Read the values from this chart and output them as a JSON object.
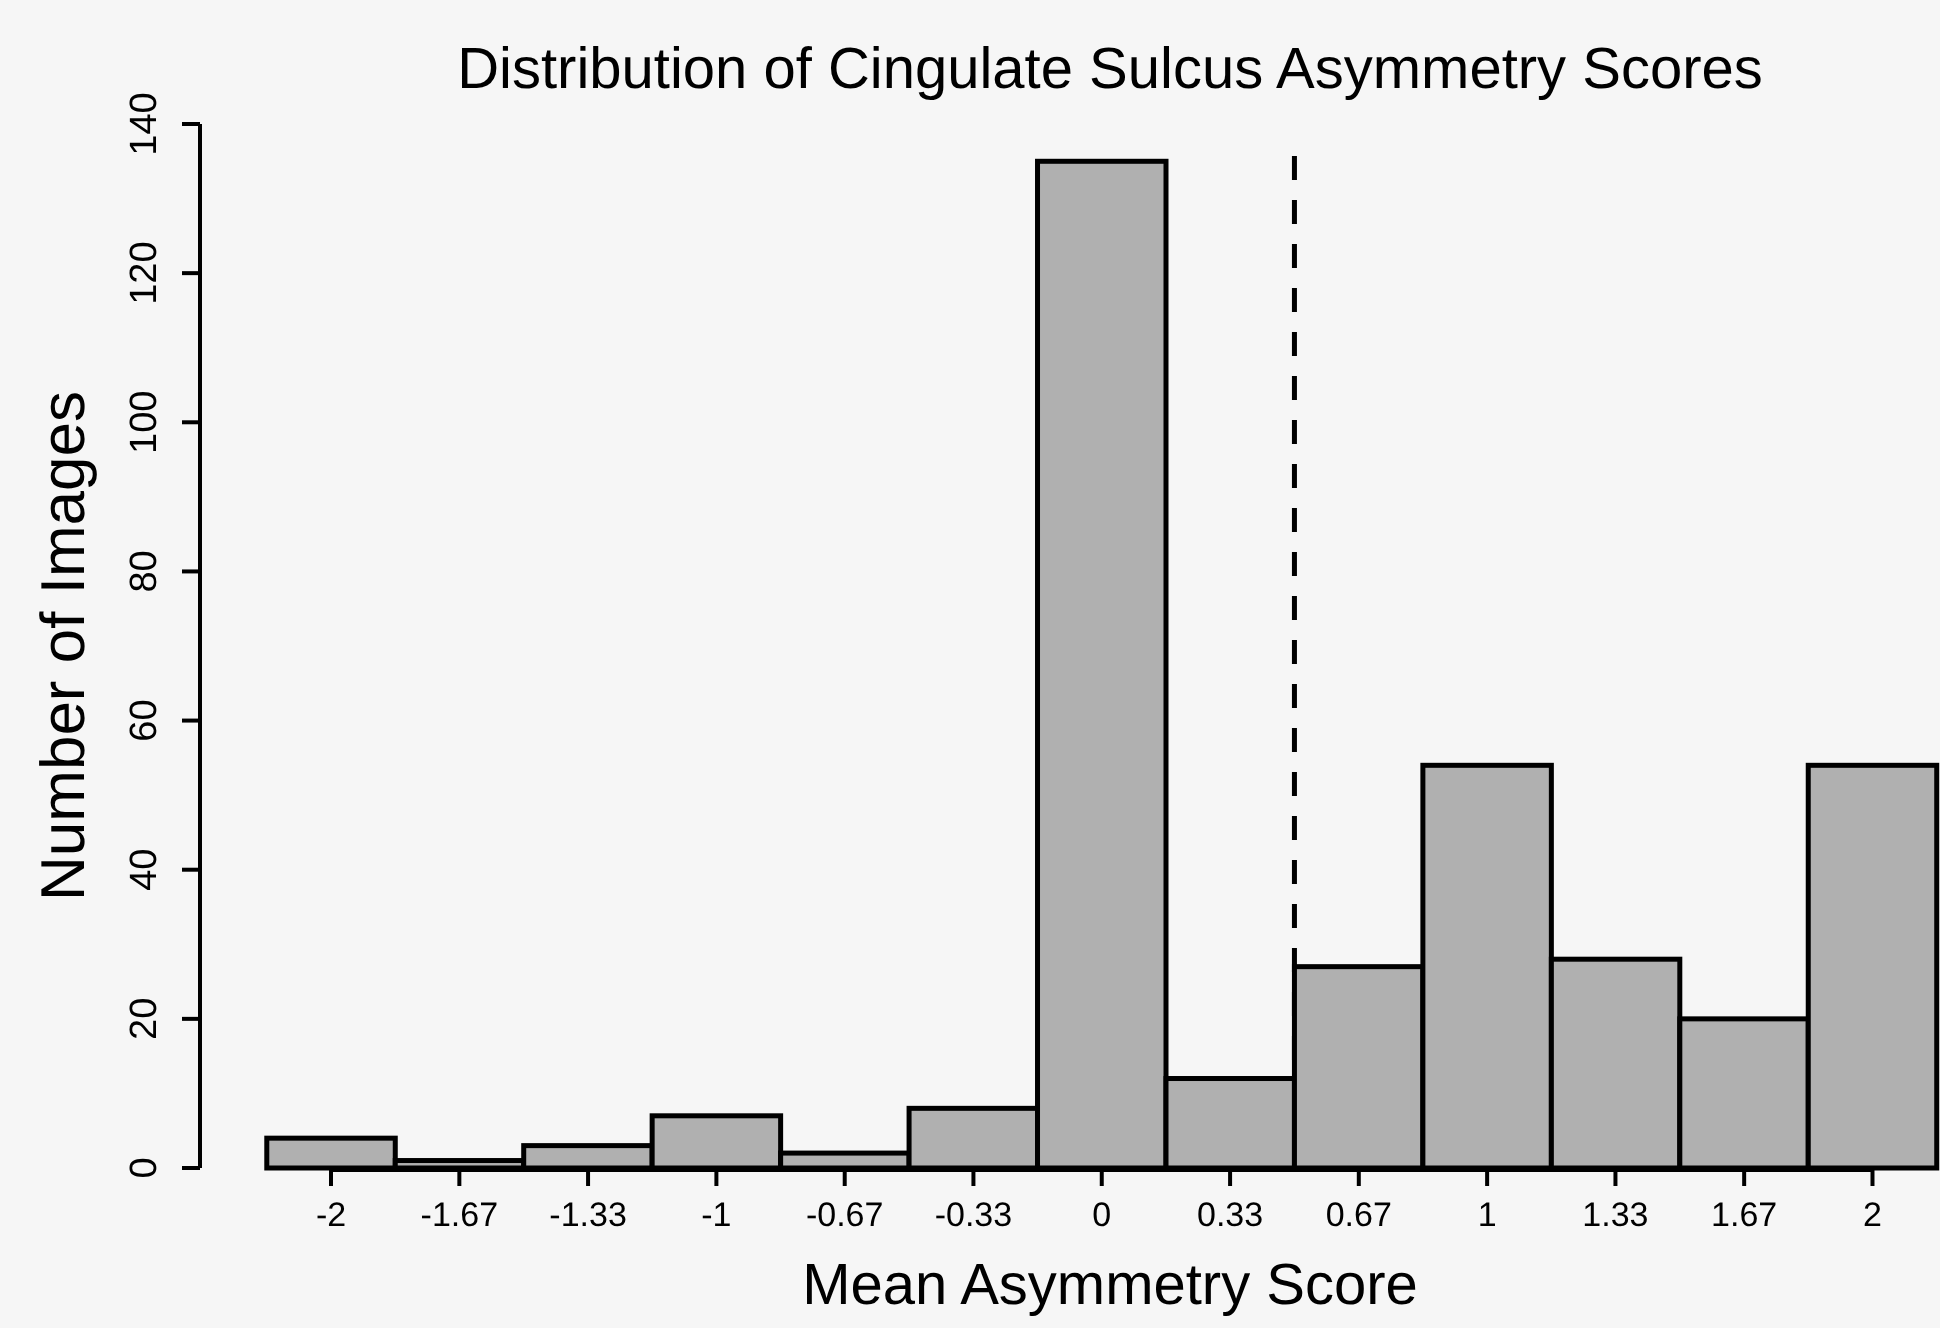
{
  "chart_data": {
    "type": "histogram",
    "title": "Distribution of Cingulate Sulcus Asymmetry Scores",
    "xlabel": "Mean Asymmetry Score",
    "ylabel": "Number of Images",
    "bins": [
      -2.1667,
      -1.8333,
      -1.5,
      -1.1667,
      -0.8333,
      -0.5,
      -0.1667,
      0.1667,
      0.5,
      0.8333,
      1.1667,
      1.5,
      1.8333,
      2.1667
    ],
    "values": [
      4,
      1,
      3,
      7,
      2,
      8,
      135,
      12,
      27,
      54,
      28,
      20,
      54
    ],
    "color": "#b0b0b0",
    "xlim": [
      -2.34,
      2.17
    ],
    "xticks": [
      -2,
      {
        "value": -1.667,
        "label": "-1.67"
      },
      {
        "value": -1.333,
        "label": "-1.33"
      },
      -1,
      {
        "value": -0.667,
        "label": "-0.67"
      },
      {
        "value": -0.333,
        "label": "-0.33"
      },
      0,
      {
        "value": 0.333,
        "label": "0.33"
      },
      {
        "value": 0.667,
        "label": "0.67"
      },
      1,
      {
        "value": 1.333,
        "label": "1.33"
      },
      {
        "value": 1.667,
        "label": "1.67"
      },
      2
    ],
    "ylim": [
      0,
      140
    ],
    "yticks": [
      0,
      20,
      40,
      60,
      80,
      100,
      120,
      140
    ],
    "ref_lines": [
      {
        "axis": "x",
        "value": 0.5,
        "color": "#000000",
        "line_style": "dashed"
      }
    ]
  }
}
